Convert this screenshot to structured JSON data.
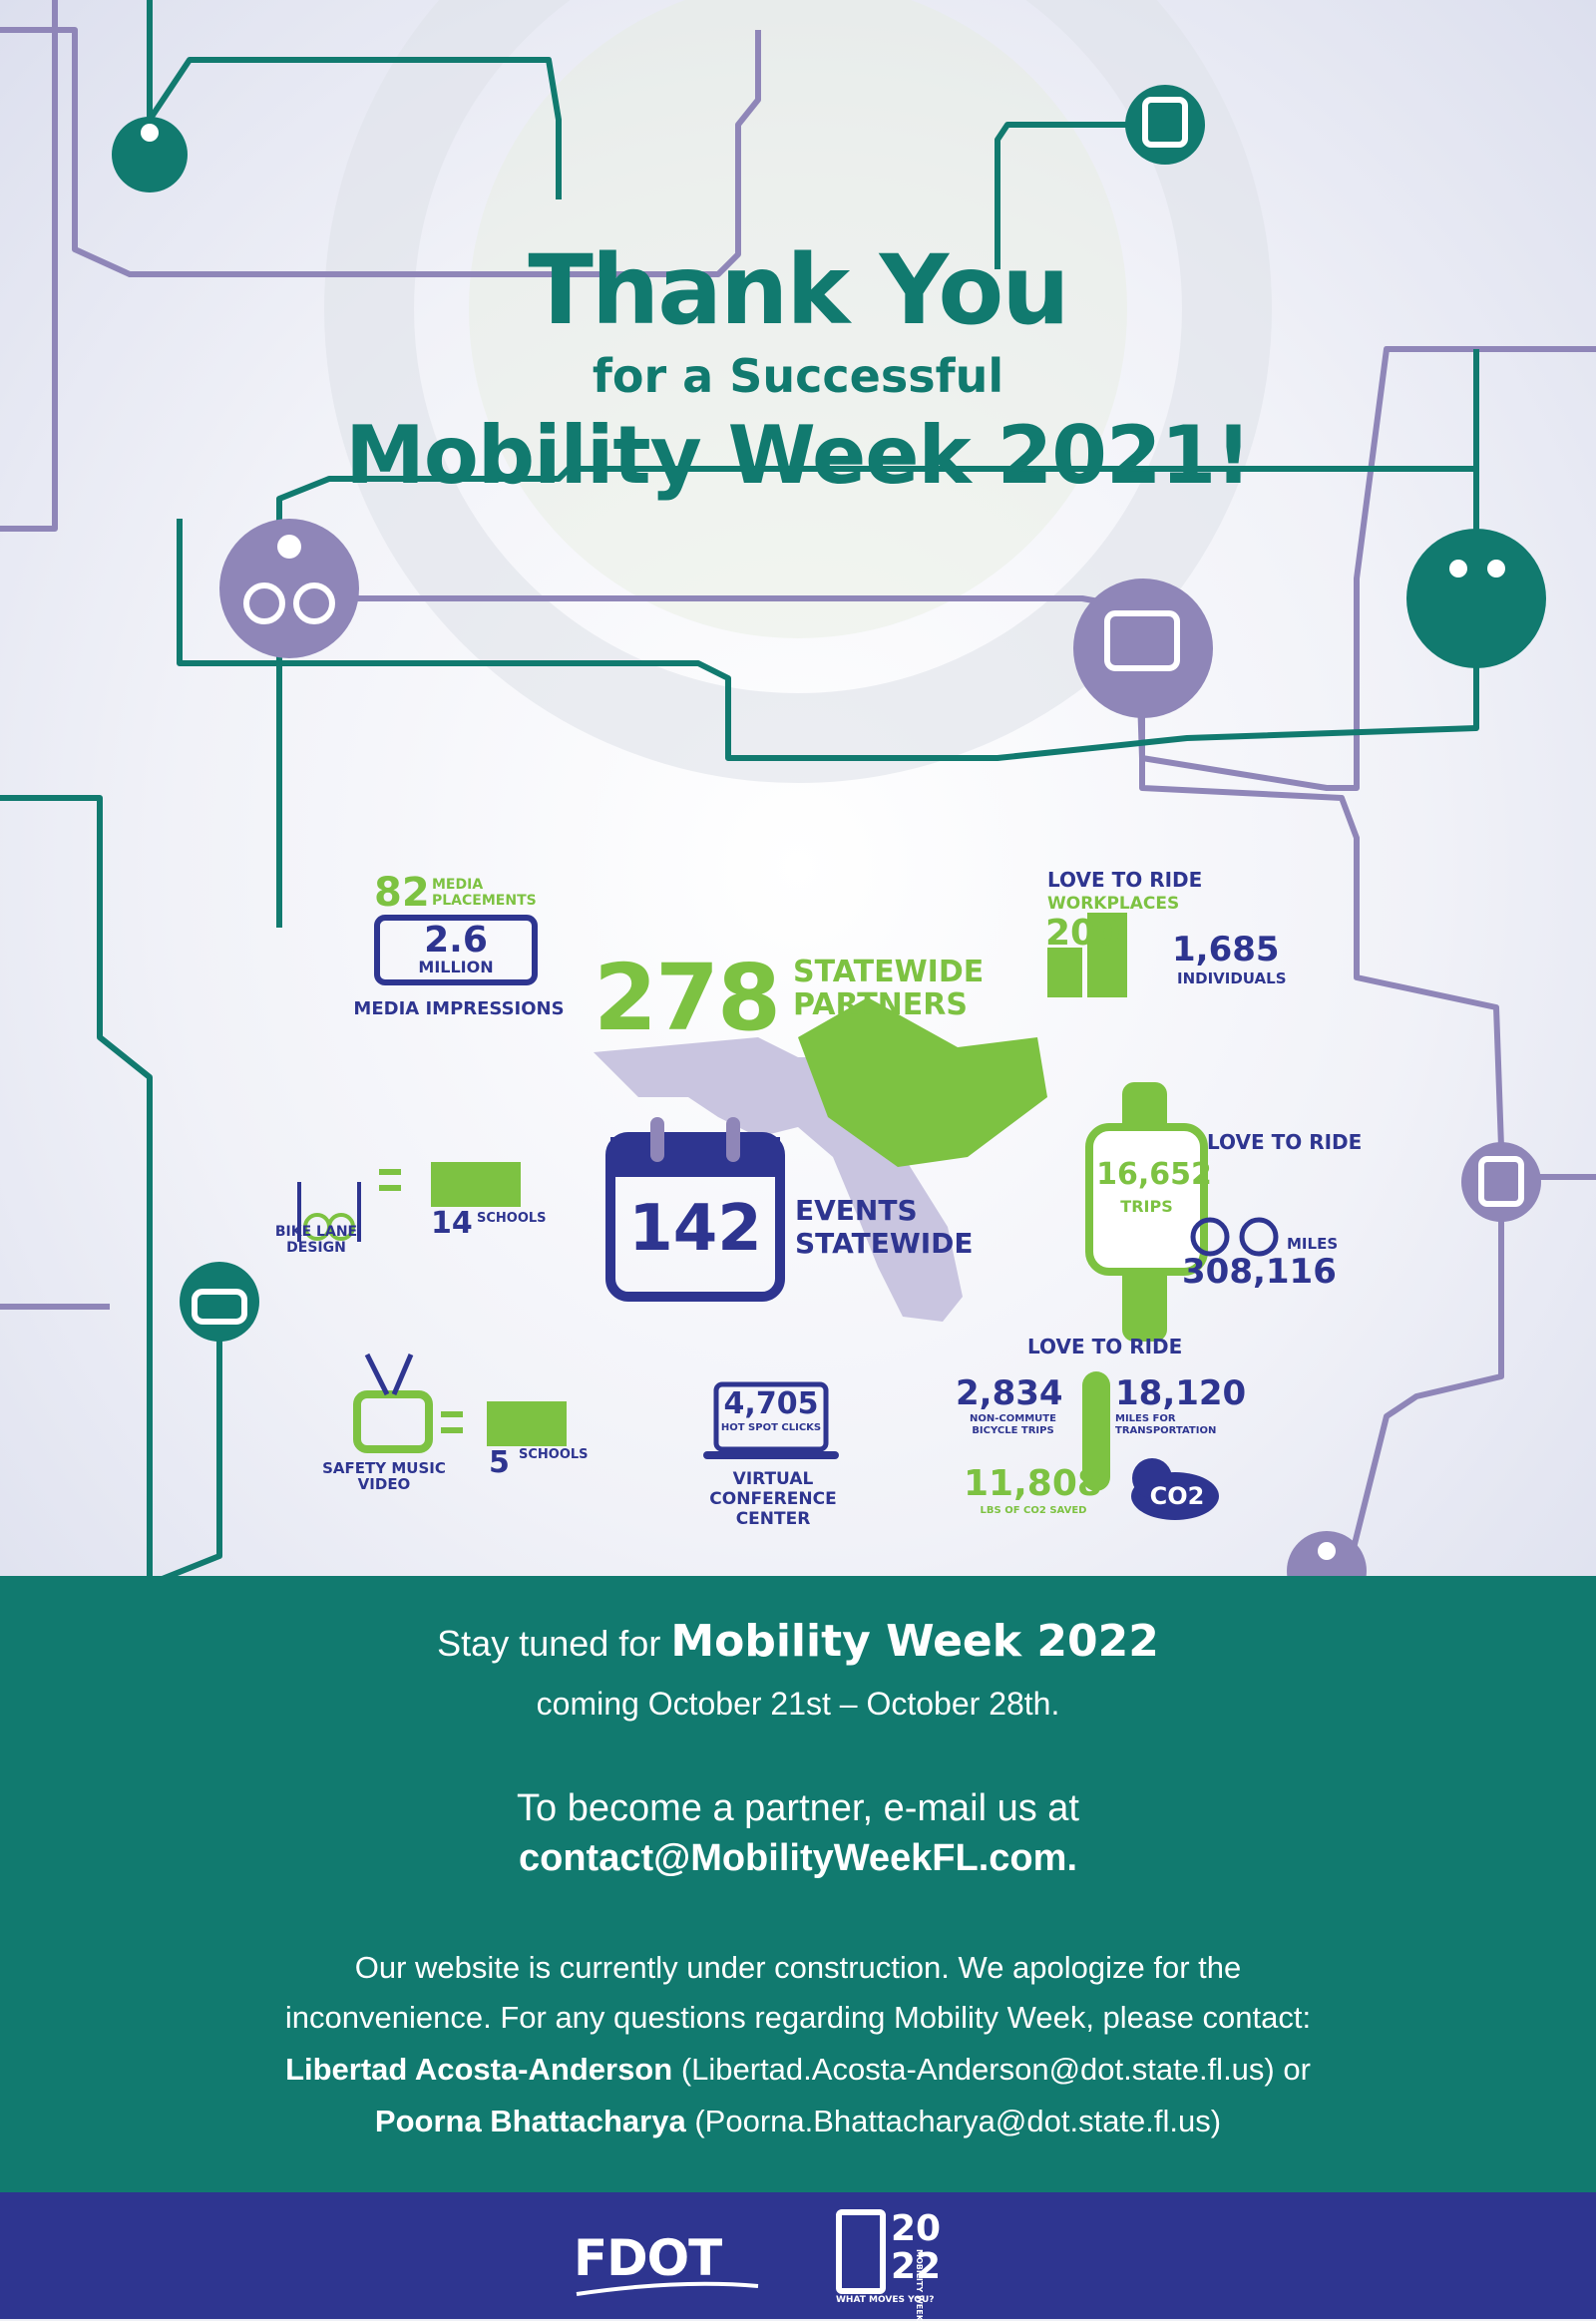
{
  "header": {
    "title_line1": "Thank You",
    "title_line2": "for a Successful",
    "title_line3": "Mobility Week 2021!"
  },
  "stats": {
    "media": {
      "count": "82",
      "count_label_1": "MEDIA",
      "count_label_2": "PLACEMENTS",
      "impressions": "2.6",
      "impressions_unit": "MILLION",
      "impressions_label": "MEDIA IMPRESSIONS"
    },
    "partners": {
      "count": "278",
      "label_1": "STATEWIDE",
      "label_2": "PARTNERS"
    },
    "events": {
      "count": "142",
      "label_1": "EVENTS",
      "label_2": "STATEWIDE"
    },
    "love_to_ride_workplaces": {
      "brand": "LOVE TO RIDE",
      "label": "WORKPLACES",
      "workplaces": "200",
      "individuals": "1,685",
      "individuals_label": "INDIVIDUALS"
    },
    "bike_lane": {
      "label_1": "BIKE LANE",
      "label_2": "DESIGN",
      "schools": "14",
      "schools_label": "SCHOOLS"
    },
    "love_to_ride_trips": {
      "brand": "LOVE TO RIDE",
      "trips": "16,652",
      "trips_label": "TRIPS",
      "miles_label": "MILES",
      "miles": "308,116"
    },
    "safety_video": {
      "label_1": "SAFETY MUSIC",
      "label_2": "VIDEO",
      "schools": "5",
      "schools_label": "SCHOOLS"
    },
    "conference": {
      "clicks": "4,705",
      "clicks_label": "HOT SPOT CLICKS",
      "label_1": "VIRTUAL",
      "label_2": "CONFERENCE",
      "label_3": "CENTER"
    },
    "love_to_ride_co2": {
      "brand": "LOVE TO RIDE",
      "trips": "2,834",
      "trips_label_1": "NON-COMMUTE",
      "trips_label_2": "BICYCLE TRIPS",
      "miles": "18,120",
      "miles_label_1": "MILES FOR",
      "miles_label_2": "TRANSPORTATION",
      "co2": "11,808",
      "co2_label": "LBS OF CO2 SAVED",
      "co2_icon": "CO2"
    }
  },
  "announcement": {
    "prefix": "Stay tuned for",
    "event": "Mobility Week 2022",
    "dates": "coming October 21st – October 28th.",
    "partner_line": "To become a partner, e-mail us at",
    "email": "contact@MobilityWeekFL.com",
    "website_1": "Our website is currently under construction. We apologize for the",
    "website_2": "inconvenience. For any questions regarding Mobility Week, please contact:",
    "contact1_name": "Libertad Acosta-Anderson",
    "contact1_email": "(Libertad.Acosta-Anderson@dot.state.fl.us) or",
    "contact2_name": "Poorna Bhattacharya",
    "contact2_email": "(Poorna.Bhattacharya@dot.state.fl.us)"
  },
  "footer": {
    "fdot_logo": "FDOT",
    "mw_logo_year_1": "20",
    "mw_logo_year_2": "22",
    "mw_logo_tagline": "WHAT MOVES YOU?",
    "mw_logo_side": "MOBILITY WEEK"
  },
  "colors": {
    "teal": "#117a6f",
    "green": "#7dc242",
    "navy": "#2e3590",
    "lavender": "#8f86b8"
  }
}
